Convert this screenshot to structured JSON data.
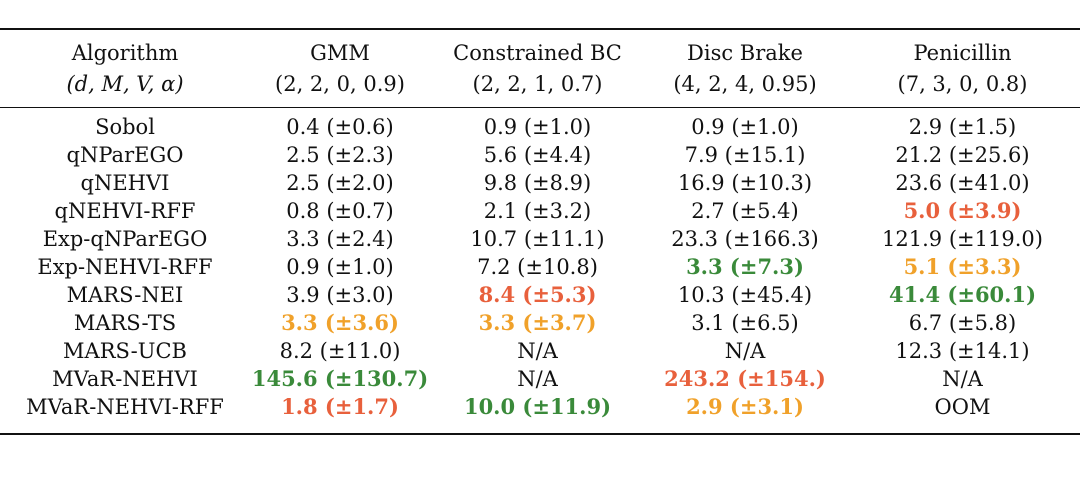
{
  "header": {
    "columns": [
      {
        "title": "Algorithm",
        "params": "(d, M, V, α)"
      },
      {
        "title": "GMM",
        "params": "(2, 2, 0, 0.9)"
      },
      {
        "title": "Constrained BC",
        "params": "(2, 2, 1, 0.7)"
      },
      {
        "title": "Disc Brake",
        "params": "(4, 2, 4, 0.95)"
      },
      {
        "title": "Penicillin",
        "params": "(7, 3, 0, 0.8)"
      }
    ]
  },
  "rows": [
    {
      "algorithm": "Sobol",
      "cells": [
        {
          "text": "0.4 (±0.6)",
          "style": "plain"
        },
        {
          "text": "0.9 (±1.0)",
          "style": "plain"
        },
        {
          "text": "0.9 (±1.0)",
          "style": "plain"
        },
        {
          "text": "2.9 (±1.5)",
          "style": "plain"
        }
      ]
    },
    {
      "algorithm": "qNParEGO",
      "cells": [
        {
          "text": "2.5 (±2.3)",
          "style": "plain"
        },
        {
          "text": "5.6 (±4.4)",
          "style": "plain"
        },
        {
          "text": "7.9 (±15.1)",
          "style": "plain"
        },
        {
          "text": "21.2 (±25.6)",
          "style": "plain"
        }
      ]
    },
    {
      "algorithm": "qNEHVI",
      "cells": [
        {
          "text": "2.5 (±2.0)",
          "style": "plain"
        },
        {
          "text": "9.8 (±8.9)",
          "style": "plain"
        },
        {
          "text": "16.9 (±10.3)",
          "style": "plain"
        },
        {
          "text": "23.6 (±41.0)",
          "style": "plain"
        }
      ]
    },
    {
      "algorithm": "qNEHVI-RFF",
      "cells": [
        {
          "text": "0.8 (±0.7)",
          "style": "plain"
        },
        {
          "text": "2.1 (±3.2)",
          "style": "plain"
        },
        {
          "text": "2.7 (±5.4)",
          "style": "plain"
        },
        {
          "text": "5.0 (±3.9)",
          "style": "best-red"
        }
      ]
    },
    {
      "algorithm": "Exp-qNParEGO",
      "cells": [
        {
          "text": "3.3 (±2.4)",
          "style": "plain"
        },
        {
          "text": "10.7 (±11.1)",
          "style": "plain"
        },
        {
          "text": "23.3 (±166.3)",
          "style": "plain"
        },
        {
          "text": "121.9 (±119.0)",
          "style": "plain"
        }
      ]
    },
    {
      "algorithm": "Exp-NEHVI-RFF",
      "cells": [
        {
          "text": "0.9 (±1.0)",
          "style": "plain"
        },
        {
          "text": "7.2 (±10.8)",
          "style": "plain"
        },
        {
          "text": "3.3 (±7.3)",
          "style": "best-green"
        },
        {
          "text": "5.1 (±3.3)",
          "style": "best-orange"
        }
      ]
    },
    {
      "algorithm": "MARS-NEI",
      "cells": [
        {
          "text": "3.9 (±3.0)",
          "style": "plain"
        },
        {
          "text": "8.4 (±5.3)",
          "style": "best-red"
        },
        {
          "text": "10.3 (±45.4)",
          "style": "plain"
        },
        {
          "text": "41.4 (±60.1)",
          "style": "best-green"
        }
      ]
    },
    {
      "algorithm": "MARS-TS",
      "cells": [
        {
          "text": "3.3 (±3.6)",
          "style": "best-orange"
        },
        {
          "text": "3.3 (±3.7)",
          "style": "best-orange"
        },
        {
          "text": "3.1 (±6.5)",
          "style": "plain"
        },
        {
          "text": "6.7 (±5.8)",
          "style": "plain"
        }
      ]
    },
    {
      "algorithm": "MARS-UCB",
      "cells": [
        {
          "text": "8.2 (±11.0)",
          "style": "plain"
        },
        {
          "text": "N/A",
          "style": "plain"
        },
        {
          "text": "N/A",
          "style": "plain"
        },
        {
          "text": "12.3 (±14.1)",
          "style": "plain"
        }
      ]
    },
    {
      "algorithm": "MVaR-NEHVI",
      "cells": [
        {
          "text": "145.6 (±130.7)",
          "style": "best-green"
        },
        {
          "text": "N/A",
          "style": "plain"
        },
        {
          "text": "243.2 (±154.)",
          "style": "best-red"
        },
        {
          "text": "N/A",
          "style": "plain"
        }
      ]
    },
    {
      "algorithm": "MVaR-NEHVI-RFF",
      "cells": [
        {
          "text": "1.8 (±1.7)",
          "style": "best-red"
        },
        {
          "text": "10.0 (±11.9)",
          "style": "best-green"
        },
        {
          "text": "2.9 (±3.1)",
          "style": "best-orange"
        },
        {
          "text": "OOM",
          "style": "plain"
        }
      ]
    }
  ],
  "colors": {
    "green": "#3a8a3a",
    "orange": "#f0a12a",
    "red": "#e8603c"
  }
}
